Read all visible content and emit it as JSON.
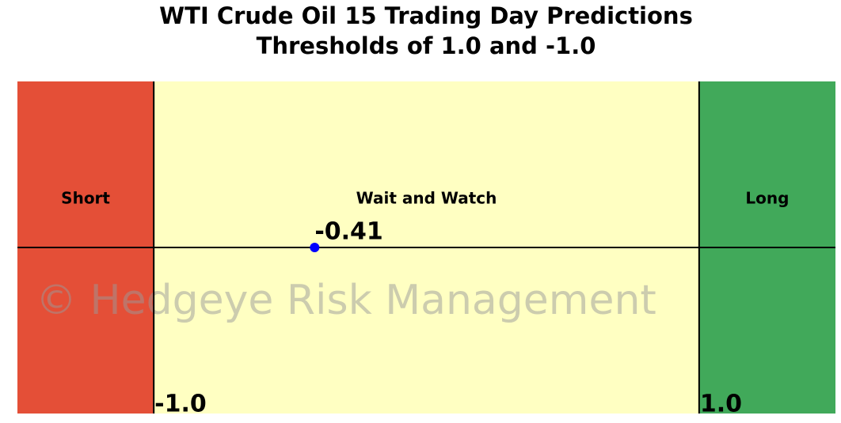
{
  "chart_data": {
    "type": "threshold",
    "title": "WTI Crude Oil 15 Trading Day Predictions",
    "subtitle": "Thresholds of 1.0 and -1.0",
    "xlim": [
      -1.5,
      1.5
    ],
    "thresholds": [
      {
        "value": -1,
        "label": "-1.0"
      },
      {
        "value": 1,
        "label": "1.0"
      }
    ],
    "zones": [
      {
        "name": "Short",
        "color": "#e44f37"
      },
      {
        "name": "Wait and Watch",
        "color": "#ffffc2"
      },
      {
        "name": "Long",
        "color": "#41a95a"
      }
    ],
    "value": -0.41,
    "point_color": "#0000ff",
    "watermark": "© Hedgeye Risk Management"
  }
}
